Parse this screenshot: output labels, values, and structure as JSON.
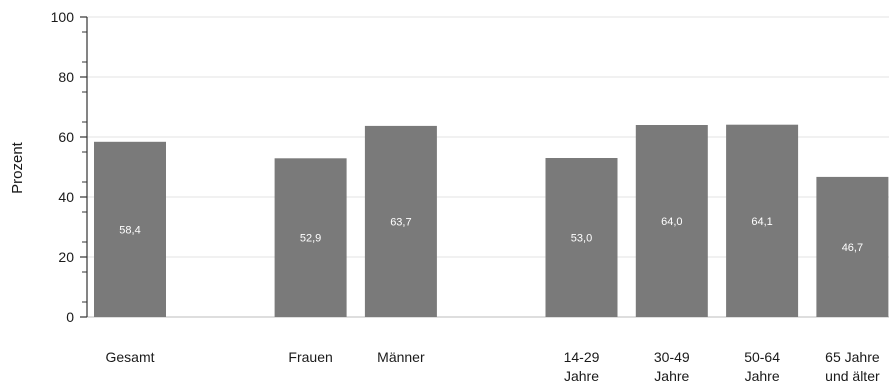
{
  "chart_data": {
    "type": "bar",
    "ylabel": "Prozent",
    "xlabel": "",
    "ylim": [
      0,
      100
    ],
    "yticks": [
      "0",
      "20",
      "40",
      "60",
      "80",
      "100"
    ],
    "grid": true,
    "bar_color": "#7a7a7a",
    "grid_color": "#e3e3e3",
    "categories": [
      [
        "Gesamt"
      ],
      [
        "Frauen"
      ],
      [
        "Männer"
      ],
      [
        "14-29",
        "Jahre"
      ],
      [
        "30-49",
        "Jahre"
      ],
      [
        "50-64",
        "Jahre"
      ],
      [
        "65 Jahre",
        "und älter"
      ]
    ],
    "values": [
      58.4,
      52.9,
      63.7,
      53.0,
      64.0,
      64.1,
      46.7
    ],
    "value_labels": [
      "58,4",
      "52,9",
      "63,7",
      "53,0",
      "64,0",
      "64,1",
      "46,7"
    ]
  }
}
